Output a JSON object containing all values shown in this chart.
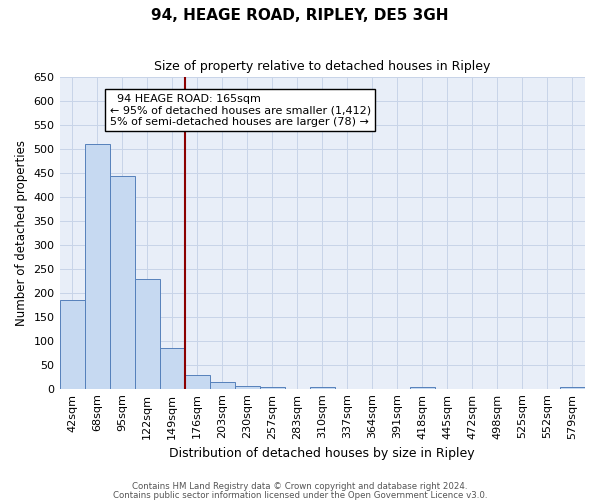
{
  "title": "94, HEAGE ROAD, RIPLEY, DE5 3GH",
  "subtitle": "Size of property relative to detached houses in Ripley",
  "xlabel": "Distribution of detached houses by size in Ripley",
  "ylabel": "Number of detached properties",
  "bar_labels": [
    "42sqm",
    "68sqm",
    "95sqm",
    "122sqm",
    "149sqm",
    "176sqm",
    "203sqm",
    "230sqm",
    "257sqm",
    "283sqm",
    "310sqm",
    "337sqm",
    "364sqm",
    "391sqm",
    "418sqm",
    "445sqm",
    "472sqm",
    "498sqm",
    "525sqm",
    "552sqm",
    "579sqm"
  ],
  "bar_values": [
    185,
    510,
    443,
    228,
    85,
    28,
    13,
    5,
    4,
    0,
    4,
    0,
    0,
    0,
    3,
    0,
    0,
    0,
    0,
    0,
    3
  ],
  "bar_color": "#c6d9f1",
  "bar_edge_color": "#5580bb",
  "vline_index": 5,
  "vline_color": "#8b0000",
  "ylim_max": 650,
  "ytick_step": 50,
  "annotation_title": "94 HEAGE ROAD: 165sqm",
  "annotation_line1": "← 95% of detached houses are smaller (1,412)",
  "annotation_line2": "5% of semi-detached houses are larger (78) →",
  "annotation_box_color": "#ffffff",
  "annotation_box_edge": "#000000",
  "grid_color": "#c8d4e8",
  "bg_color": "#e8eef8",
  "footer1": "Contains HM Land Registry data © Crown copyright and database right 2024.",
  "footer2": "Contains public sector information licensed under the Open Government Licence v3.0."
}
